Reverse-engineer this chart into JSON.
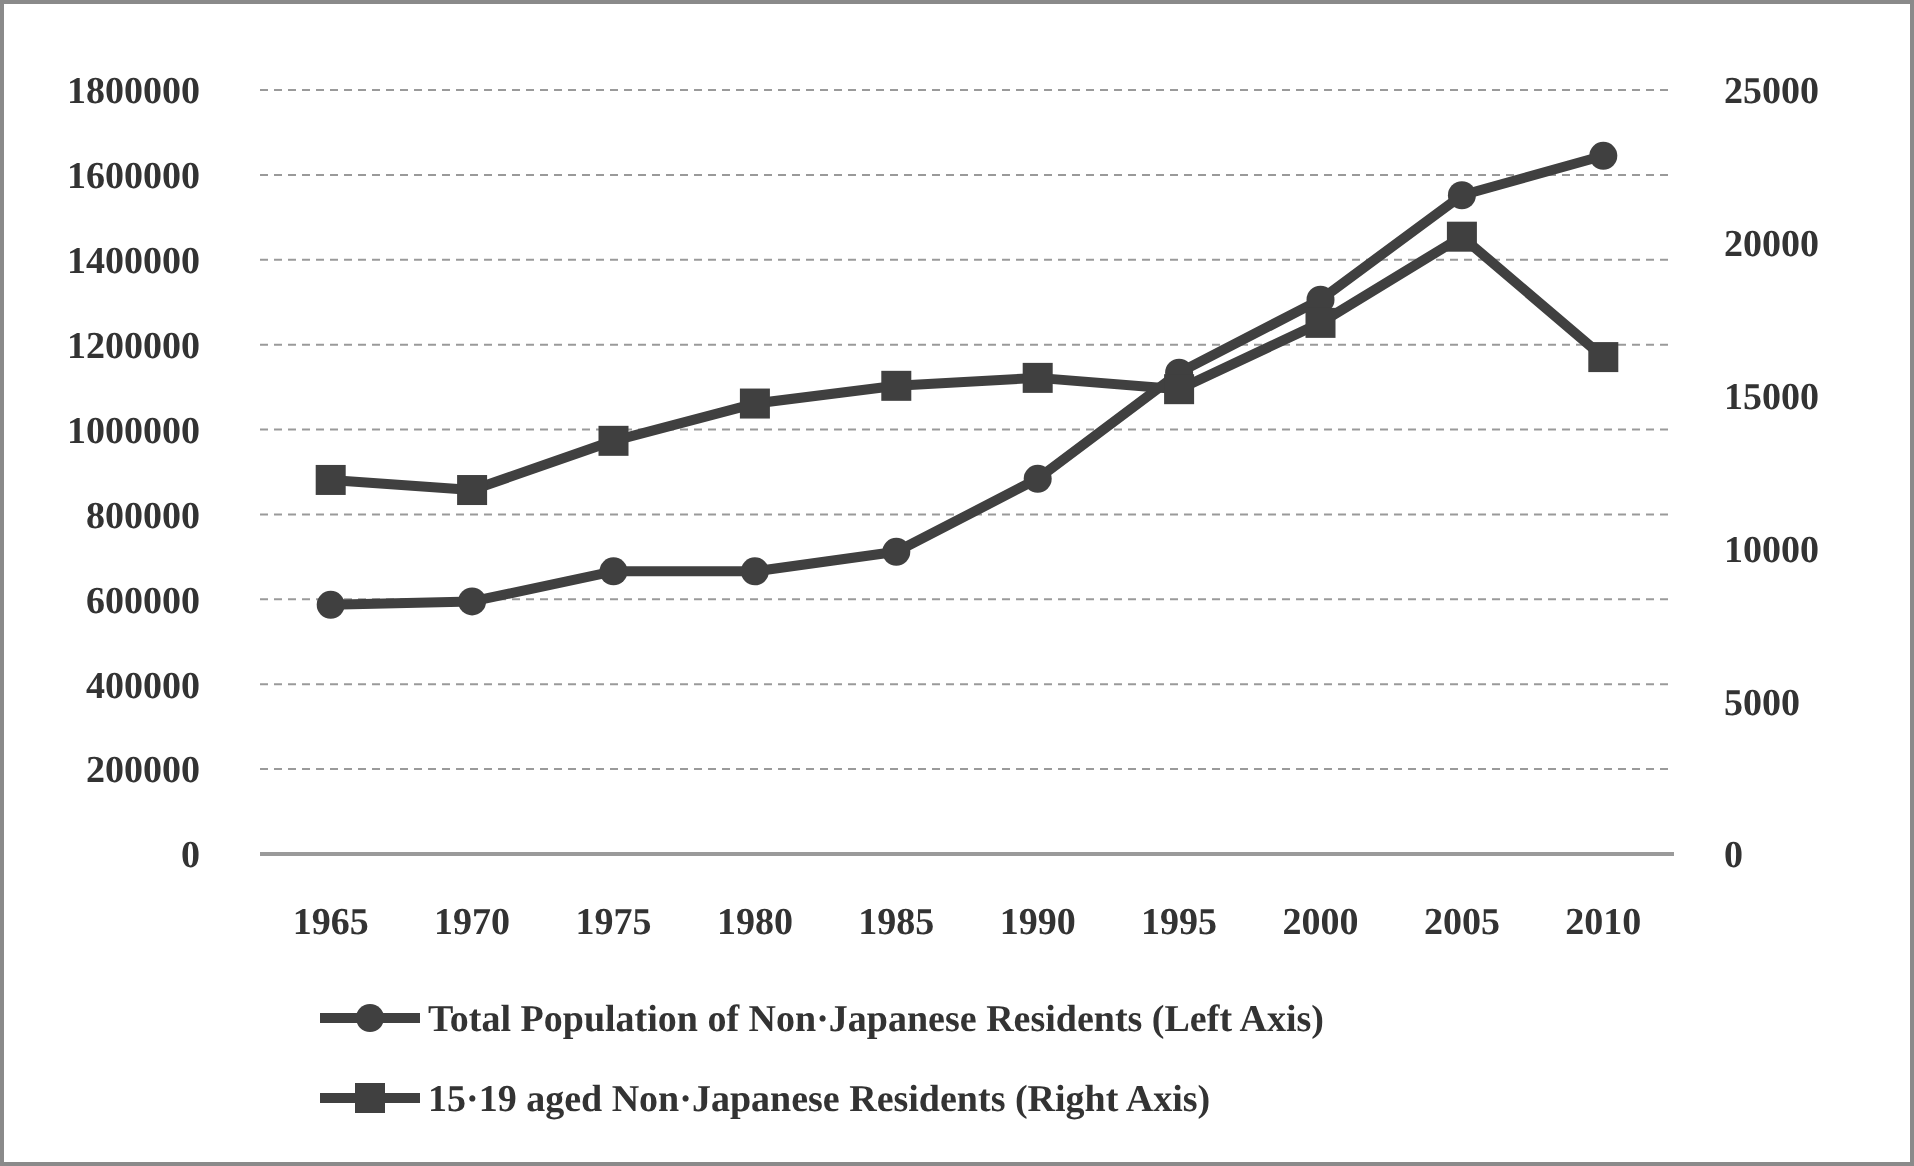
{
  "chart_data": {
    "type": "line",
    "categories": [
      "1965",
      "1970",
      "1975",
      "1980",
      "1985",
      "1990",
      "1995",
      "2000",
      "2005",
      "2010"
    ],
    "series": [
      {
        "name": "Total Population of Non·Japanese Residents (Left Axis)",
        "color": "#404040",
        "marker": "circle",
        "values": [
          587000,
          595000,
          666000,
          666000,
          712000,
          884000,
          1134000,
          1306000,
          1552000,
          1645000
        ]
      },
      {
        "name": "15·19 aged Non·Japanese Residents (Right Axis)",
        "color": "#404040",
        "marker": "square",
        "axis": "y2",
        "values": [
          12240,
          11910,
          13520,
          14740,
          15320,
          15580,
          15210,
          17380,
          20200,
          16260
        ]
      }
    ],
    "ylim": [
      0,
      1800000
    ],
    "yticks": [
      0,
      200000,
      400000,
      600000,
      800000,
      1000000,
      1200000,
      1400000,
      1600000,
      1800000
    ],
    "y2lim": [
      0,
      25000
    ],
    "y2ticks": [
      0,
      5000,
      10000,
      15000,
      20000,
      25000
    ],
    "grid": "y",
    "legend": "bottom",
    "line_style": "solid"
  }
}
